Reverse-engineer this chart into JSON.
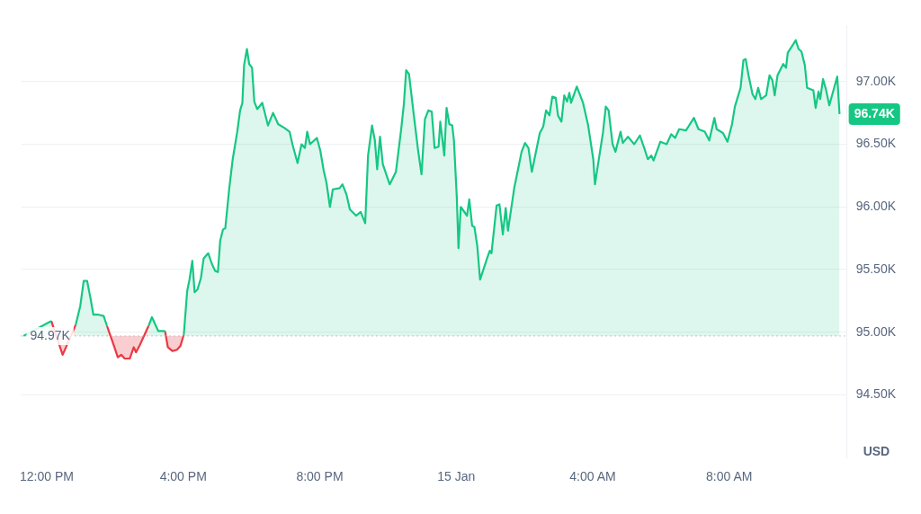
{
  "chart_data": {
    "type": "area",
    "ylabel": "USD",
    "x": [
      "--01-14T11:19",
      "--01-14T12:08",
      "--01-14T12:28",
      "--01-14T12:51",
      "--01-14T12:59",
      "--01-14T13:05",
      "--01-14T13:11",
      "--01-14T13:17",
      "--01-14T13:22",
      "--01-14T13:31",
      "--01-14T13:40",
      "--01-14T13:46",
      "--01-14T13:53",
      "--01-14T13:59",
      "--01-14T14:05",
      "--01-14T14:11",
      "--01-14T14:17",
      "--01-14T14:26",
      "--01-14T14:33",
      "--01-14T14:37",
      "--01-14T14:44",
      "--01-14T14:50",
      "--01-14T14:59",
      "--01-14T15:05",
      "--01-14T15:16",
      "--01-14T15:28",
      "--01-14T15:33",
      "--01-14T15:41",
      "--01-14T15:49",
      "--01-14T15:55",
      "--01-14T16:01",
      "--01-14T16:07",
      "--01-14T16:11",
      "--01-14T16:16",
      "--01-14T16:20",
      "--01-14T16:25",
      "--01-14T16:31",
      "--01-14T16:36",
      "--01-14T16:44",
      "--01-14T16:50",
      "--01-14T16:56",
      "--01-14T17:01",
      "--01-14T17:05",
      "--01-14T17:10",
      "--01-14T17:14",
      "--01-14T17:21",
      "--01-14T17:27",
      "--01-14T17:35",
      "--01-14T17:40",
      "--01-14T17:44",
      "--01-14T17:47",
      "--01-14T17:52",
      "--01-14T17:56",
      "--01-14T18:01",
      "--01-14T18:05",
      "--01-14T18:10",
      "--01-14T18:19",
      "--01-14T18:29",
      "--01-14T18:38",
      "--01-14T18:47",
      "--01-14T18:58",
      "--01-14T19:07",
      "--01-14T19:12",
      "--01-14T19:21",
      "--01-14T19:28",
      "--01-14T19:34",
      "--01-14T19:38",
      "--01-14T19:43",
      "--01-14T19:55",
      "--01-14T20:01",
      "--01-14T20:07",
      "--01-14T20:12",
      "--01-14T20:18",
      "--01-14T20:23",
      "--01-14T20:35",
      "--01-14T20:40",
      "--01-14T20:47",
      "--01-14T20:53",
      "--01-14T21:04",
      "--01-14T21:12",
      "--01-14T21:20",
      "--01-14T21:25",
      "--01-14T21:32",
      "--01-14T21:37",
      "--01-14T21:41",
      "--01-14T21:46",
      "--01-14T21:51",
      "--01-14T22:03",
      "--01-14T22:14",
      "--01-14T22:23",
      "--01-14T22:28",
      "--01-14T22:32",
      "--01-14T22:37",
      "--01-14T22:45",
      "--01-14T22:53",
      "--01-14T22:59",
      "--01-14T23:05",
      "--01-14T23:11",
      "--01-14T23:17",
      "--01-14T23:22",
      "--01-14T23:29",
      "--01-14T23:32",
      "--01-14T23:39",
      "--01-14T23:43",
      "--01-14T23:48",
      "--01-14T23:53",
      "--01-14T23:56",
      "--01-15T00:01",
      "--01-15T00:04",
      "--01-15T00:08",
      "--01-15T00:19",
      "--01-15T00:23",
      "--01-15T00:28",
      "--01-15T00:32",
      "--01-15T00:37",
      "--01-15T00:42",
      "--01-15T00:55",
      "--01-15T00:59",
      "--01-15T01:02",
      "--01-15T01:07",
      "--01-15T01:11",
      "--01-15T01:16",
      "--01-15T01:22",
      "--01-15T01:27",
      "--01-15T01:31",
      "--01-15T01:42",
      "--01-15T01:55",
      "--01-15T02:01",
      "--01-15T02:07",
      "--01-15T02:13",
      "--01-15T02:27",
      "--01-15T02:33",
      "--01-15T02:38",
      "--01-15T02:44",
      "--01-15T02:49",
      "--01-15T02:55",
      "--01-15T02:59",
      "--01-15T03:05",
      "--01-15T03:10",
      "--01-15T03:15",
      "--01-15T03:19",
      "--01-15T03:22",
      "--01-15T03:32",
      "--01-15T03:43",
      "--01-15T03:52",
      "--01-15T04:01",
      "--01-15T04:04",
      "--01-15T04:08",
      "--01-15T04:18",
      "--01-15T04:23",
      "--01-15T04:28",
      "--01-15T04:35",
      "--01-15T04:40",
      "--01-15T04:49",
      "--01-15T04:53",
      "--01-15T05:02",
      "--01-15T05:13",
      "--01-15T05:23",
      "--01-15T05:32",
      "--01-15T05:37",
      "--01-15T05:43",
      "--01-15T05:47",
      "--01-15T05:59",
      "--01-15T06:10",
      "--01-15T06:18",
      "--01-15T06:25",
      "--01-15T06:32",
      "--01-15T06:44",
      "--01-15T06:58",
      "--01-15T07:06",
      "--01-15T07:17",
      "--01-15T07:25",
      "--01-15T07:34",
      "--01-15T07:38",
      "--01-15T07:49",
      "--01-15T07:57",
      "--01-15T08:05",
      "--01-15T08:10",
      "--01-15T08:20",
      "--01-15T08:25",
      "--01-15T08:29",
      "--01-15T08:34",
      "--01-15T08:41",
      "--01-15T08:46",
      "--01-15T08:51",
      "--01-15T08:56",
      "--01-15T09:05",
      "--01-15T09:11",
      "--01-15T09:16",
      "--01-15T09:20",
      "--01-15T09:25",
      "--01-15T09:35",
      "--01-15T09:40",
      "--01-15T09:43",
      "--01-15T09:53",
      "--01-15T09:57",
      "--01-15T10:02",
      "--01-15T10:07",
      "--01-15T10:13",
      "--01-15T10:17",
      "--01-15T10:28",
      "--01-15T10:32",
      "--01-15T10:37",
      "--01-15T10:40",
      "--01-15T10:45",
      "--01-15T10:50",
      "--01-15T10:56",
      "--01-15T11:10",
      "--01-15T11:14"
    ],
    "series": [
      {
        "color": "#16c784",
        "values": [
          94.97,
          95.09,
          null,
          95.06,
          95.21,
          95.41,
          95.41,
          95.27,
          95.14,
          95.14,
          95.13,
          95.05,
          null,
          null,
          null,
          null,
          null,
          null,
          null,
          null,
          null,
          null,
          95.05,
          95.12,
          95.01,
          95.01,
          null,
          null,
          null,
          null,
          94.98,
          95.33,
          95.42,
          95.57,
          95.32,
          95.34,
          95.43,
          95.59,
          95.63,
          95.55,
          95.49,
          95.48,
          95.73,
          95.82,
          95.83,
          96.15,
          96.38,
          96.6,
          96.77,
          96.83,
          97.13,
          97.26,
          97.14,
          97.11,
          96.84,
          96.78,
          96.83,
          96.65,
          96.75,
          96.66,
          96.63,
          96.6,
          96.5,
          96.35,
          96.5,
          96.47,
          96.6,
          96.5,
          96.55,
          96.45,
          96.29,
          96.19,
          96.0,
          96.14,
          96.15,
          96.18,
          96.1,
          95.98,
          95.93,
          95.96,
          95.87,
          96.41,
          96.65,
          96.53,
          96.3,
          96.56,
          96.34,
          96.18,
          96.28,
          96.61,
          96.82,
          97.09,
          97.06,
          96.75,
          96.45,
          96.26,
          96.7,
          96.77,
          96.76,
          96.47,
          96.48,
          96.68,
          96.41,
          96.79,
          96.66,
          96.65,
          96.53,
          96.08,
          95.67,
          96.0,
          95.93,
          96.06,
          95.85,
          95.84,
          95.69,
          95.42,
          95.6,
          95.65,
          95.63,
          95.84,
          96.01,
          96.02,
          95.78,
          95.99,
          95.81,
          96.15,
          96.44,
          96.51,
          96.47,
          96.28,
          96.59,
          96.64,
          96.77,
          96.73,
          96.88,
          96.87,
          96.73,
          96.68,
          96.89,
          96.84,
          96.91,
          96.83,
          96.96,
          96.83,
          96.65,
          96.38,
          96.18,
          96.3,
          96.59,
          96.8,
          96.77,
          96.5,
          96.44,
          96.6,
          96.51,
          96.56,
          96.5,
          96.57,
          96.45,
          96.38,
          96.41,
          96.37,
          96.52,
          96.5,
          96.58,
          96.55,
          96.62,
          96.61,
          96.71,
          96.62,
          96.6,
          96.53,
          96.71,
          96.62,
          96.59,
          96.52,
          96.66,
          96.8,
          96.95,
          97.17,
          97.18,
          97.05,
          96.9,
          96.86,
          96.95,
          96.86,
          96.89,
          97.05,
          97.01,
          96.89,
          97.05,
          97.14,
          97.11,
          97.23,
          97.3,
          97.33,
          97.26,
          97.24,
          97.13,
          96.95,
          96.93,
          96.79,
          96.92,
          96.86,
          97.02,
          96.94,
          96.81,
          97.04,
          96.74
        ]
      },
      {
        "color": "#ea3943",
        "x": [
          "--01-14T12:08",
          "--01-14T12:28",
          "--01-14T12:51",
          "--01-14T13:30",
          "--01-14T13:46",
          "--01-14T13:53",
          "--01-14T13:59",
          "--01-14T14:05",
          "--01-14T14:11",
          "--01-14T14:17",
          "--01-14T14:26",
          "--01-14T14:33",
          "--01-14T14:37",
          "--01-14T14:44",
          "--01-14T14:50",
          "--01-14T14:59",
          "--01-14T15:12",
          "--01-14T15:28",
          "--01-14T15:33",
          "--01-14T15:41",
          "--01-14T15:49",
          "--01-14T15:55",
          "--01-14T16:01"
        ],
        "values": [
          95.09,
          94.82,
          95.06,
          null,
          95.05,
          94.96,
          94.88,
          94.8,
          94.82,
          94.79,
          94.79,
          94.88,
          94.84,
          94.9,
          94.96,
          95.05,
          null,
          95.01,
          94.88,
          94.85,
          94.86,
          94.89,
          94.98
        ]
      }
    ],
    "xlim": [
      "--01-14T11:15",
      "--01-15T11:27"
    ],
    "xticks": [
      {
        "value": "--01-14T12:00",
        "label": "12:00 PM"
      },
      {
        "value": "--01-14T16:00",
        "label": "4:00 PM"
      },
      {
        "value": "--01-14T20:00",
        "label": "8:00 PM"
      },
      {
        "value": "--01-15T00:00",
        "label": "15 Jan"
      },
      {
        "value": "--01-15T04:00",
        "label": "4:00 AM"
      },
      {
        "value": "--01-15T08:00",
        "label": "8:00 AM"
      }
    ],
    "ylim": [
      94.0,
      97.45
    ],
    "yticks": [
      {
        "value": 94.5,
        "label": "94.50K"
      },
      {
        "value": 95,
        "label": "95.00K"
      },
      {
        "value": 95.5,
        "label": "95.50K"
      },
      {
        "value": 96,
        "label": "96.00K"
      },
      {
        "value": 96.5,
        "label": "96.50K"
      },
      {
        "value": 97,
        "label": "97.00K"
      }
    ],
    "ref_lines": [
      {
        "axis": "y",
        "value": 94.97,
        "label": "94.97K",
        "color": "#a0a7b4",
        "line_style": "dotted"
      }
    ],
    "annotations": [
      {
        "text": "96.74K",
        "x": "--01-15T11:14",
        "y": 96.74
      }
    ],
    "grid": "y",
    "legend": false,
    "marker": "none",
    "line_style": "solid"
  }
}
